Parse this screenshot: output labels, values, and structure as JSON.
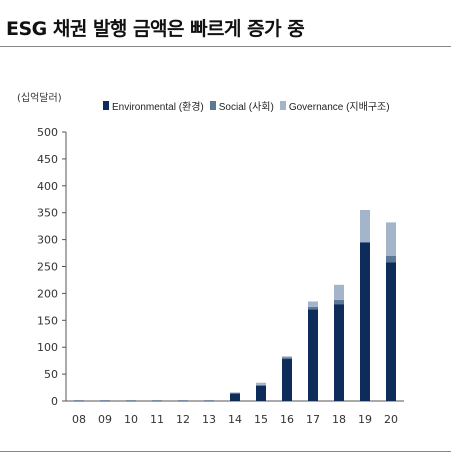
{
  "title": "ESG 채권 발행 금액은 빠르게 증가 중",
  "chart_data": {
    "type": "bar",
    "stacked": true,
    "unit_label": "(십억달러)",
    "categories": [
      "08",
      "09",
      "10",
      "11",
      "12",
      "13",
      "14",
      "15",
      "16",
      "17",
      "18",
      "19",
      "20"
    ],
    "series": [
      {
        "name": "Environmental (환경)",
        "color": "#0d2c5a",
        "values": [
          1,
          1,
          1,
          1,
          1,
          1,
          14,
          28,
          78,
          170,
          180,
          295,
          258
        ]
      },
      {
        "name": "Social (사회)",
        "color": "#5b7896",
        "values": [
          0,
          0,
          0,
          0,
          0,
          0,
          1,
          2,
          3,
          5,
          8,
          0,
          12
        ]
      },
      {
        "name": "Governance (지배구조)",
        "color": "#a3b4cb",
        "values": [
          0,
          0,
          0,
          0,
          0,
          0,
          1,
          4,
          2,
          10,
          28,
          60,
          62
        ]
      }
    ],
    "ylim": [
      0,
      500
    ],
    "yticks": [
      0,
      50,
      100,
      150,
      200,
      250,
      300,
      350,
      400,
      450,
      500
    ],
    "legend_position": "top",
    "grid": false
  }
}
